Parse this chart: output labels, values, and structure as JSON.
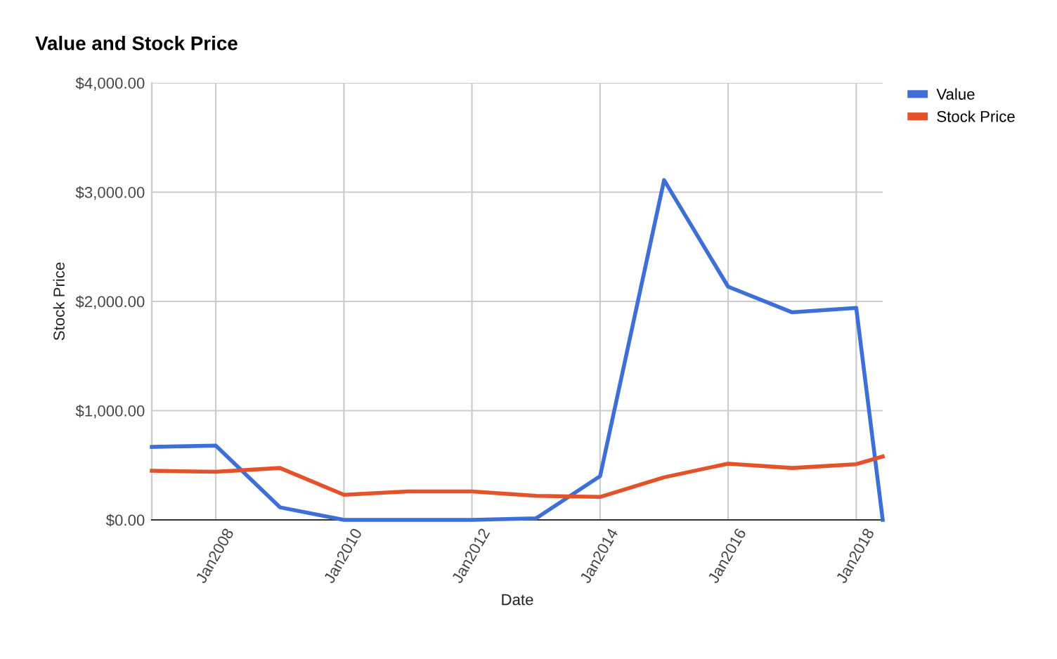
{
  "chart_data": {
    "type": "line",
    "title": "Value and Stock Price",
    "xlabel": "Date",
    "ylabel": "Stock Price",
    "x": [
      "2007-01",
      "2008-01",
      "2009-01",
      "2010-01",
      "2011-01",
      "2012-01",
      "2013-01",
      "2014-01",
      "2015-01",
      "2016-01",
      "2017-01",
      "2018-01",
      "2018-06"
    ],
    "series": [
      {
        "name": "Value",
        "color": "#3d6fd6",
        "values": [
          668,
          680,
          115,
          0,
          0,
          0,
          15,
          400,
          3110,
          2135,
          1900,
          1940,
          0
        ]
      },
      {
        "name": "Stock Price",
        "color": "#e4522b",
        "values": [
          450,
          440,
          475,
          230,
          260,
          260,
          220,
          210,
          390,
          515,
          475,
          510,
          580
        ]
      }
    ],
    "xlim": [
      "2007-01",
      "2018-06"
    ],
    "xticks": [
      {
        "value": "2008-01",
        "label": "Jan2008"
      },
      {
        "value": "2010-01",
        "label": "Jan2010"
      },
      {
        "value": "2012-01",
        "label": "Jan2012"
      },
      {
        "value": "2014-01",
        "label": "Jan2014"
      },
      {
        "value": "2016-01",
        "label": "Jan2016"
      },
      {
        "value": "2018-01",
        "label": "Jan2018"
      }
    ],
    "ylim": [
      0,
      4000
    ],
    "yticks": [
      {
        "value": 0,
        "label": "$0.00"
      },
      {
        "value": 1000,
        "label": "$1,000.00"
      },
      {
        "value": 2000,
        "label": "$2,000.00"
      },
      {
        "value": 3000,
        "label": "$3,000.00"
      },
      {
        "value": 4000,
        "label": "$4,000.00"
      }
    ],
    "grid": true,
    "legend": "top right",
    "marker": "none",
    "line_style": "solid"
  }
}
